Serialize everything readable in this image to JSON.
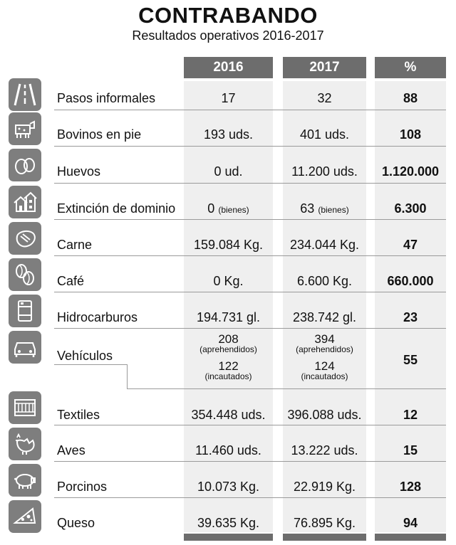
{
  "title": "CONTRABANDO",
  "subtitle": "Resultados operativos 2016-2017",
  "headers": [
    "2016",
    "2017",
    "%"
  ],
  "rows": [
    {
      "label": "Pasos informales",
      "icon": "road-icon",
      "v2016": "17",
      "v2017": "32",
      "pct": "88"
    },
    {
      "label": "Bovinos en pie",
      "icon": "cow-icon",
      "v2016": "193 uds.",
      "v2017": "401 uds.",
      "pct": "108"
    },
    {
      "label": "Huevos",
      "icon": "eggs-icon",
      "v2016": "0 ud.",
      "v2017": "11.200 uds.",
      "pct": "1.120.000"
    },
    {
      "label": "Extinción de dominio",
      "icon": "houses-icon",
      "v2016": "0",
      "v2016_note": "(bienes)",
      "v2017": "63",
      "v2017_note": "(bienes)",
      "pct": "6.300"
    },
    {
      "label": "Carne",
      "icon": "steak-icon",
      "v2016": "159.084 Kg.",
      "v2017": "234.044 Kg.",
      "pct": "47"
    },
    {
      "label": "Café",
      "icon": "coffee-beans-icon",
      "v2016": "0 Kg.",
      "v2017": "6.600 Kg.",
      "pct": "660.000"
    },
    {
      "label": "Hidrocarburos",
      "icon": "barrel-icon",
      "v2016": "194.731 gl.",
      "v2017": "238.742 gl.",
      "pct": "23"
    },
    {
      "label": "Vehículos",
      "icon": "car-icon",
      "v2016_a": "208",
      "v2016_a_note": "(aprehendidos)",
      "v2016_b": "122",
      "v2016_b_note": "(incautados)",
      "v2017_a": "394",
      "v2017_a_note": "(aprehendidos)",
      "v2017_b": "124",
      "v2017_b_note": "(incautados)",
      "pct": "55"
    },
    {
      "label": "Textiles",
      "icon": "textile-icon",
      "v2016": "354.448 uds.",
      "v2017": "396.088 uds.",
      "pct": "12"
    },
    {
      "label": "Aves",
      "icon": "hen-icon",
      "v2016": "11.460 uds.",
      "v2017": "13.222 uds.",
      "pct": "15"
    },
    {
      "label": "Porcinos",
      "icon": "pig-icon",
      "v2016": "10.073 Kg.",
      "v2017": "22.919 Kg.",
      "pct": "128"
    },
    {
      "label": "Queso",
      "icon": "cheese-icon",
      "v2016": "39.635 Kg.",
      "v2017": "76.895 Kg.",
      "pct": "94"
    }
  ]
}
